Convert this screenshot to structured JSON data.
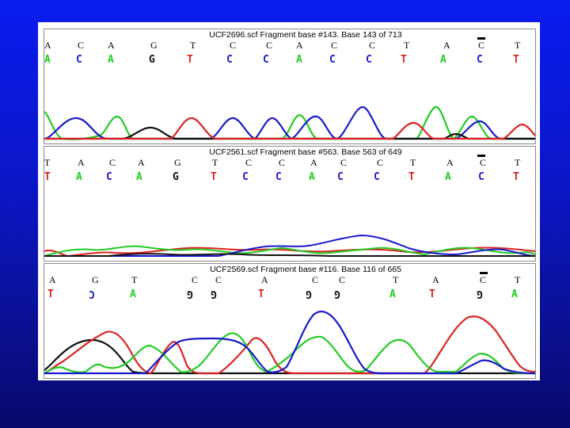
{
  "colors": {
    "A": "#22cc22",
    "C": "#1a1acc",
    "G": "#111111",
    "T": "#dd2222"
  },
  "panels": [
    {
      "title": "UCF2696.scf Fragment base #143.  Base 143 of 713",
      "calls": [
        "A",
        "C",
        "A",
        "G",
        "T",
        "C",
        "C",
        "A",
        "C",
        "C",
        "T",
        "A",
        "C",
        "T"
      ],
      "edited": [
        "A",
        "C",
        "A",
        "G",
        "T",
        "C",
        "C",
        "A",
        "C",
        "C",
        "T",
        "A",
        "C",
        "T"
      ]
    },
    {
      "title": "UCF2561.scf Fragment base #563.  Base 563 of 649",
      "calls": [
        "T",
        "A",
        "C",
        "A",
        "G",
        "T",
        "C",
        "C",
        "A",
        "C",
        "C",
        "T",
        "A",
        "C",
        "T"
      ],
      "edited": [
        "T",
        "A",
        "C",
        "A",
        "G",
        "T",
        "C",
        "C",
        "A",
        "C",
        "C",
        "T",
        "A",
        "C",
        "T"
      ]
    },
    {
      "title": "UCF2569.scf Fragment base #116.  Base 116 of 665",
      "calls": [
        "A",
        "G",
        "T",
        "C",
        "C",
        "A",
        "C",
        "C",
        "T",
        "A",
        "C",
        "T"
      ],
      "edited": [
        "T",
        "C",
        "A",
        "G",
        "G",
        "T",
        "G",
        "G",
        "A",
        "T",
        "G",
        "A"
      ]
    }
  ]
}
